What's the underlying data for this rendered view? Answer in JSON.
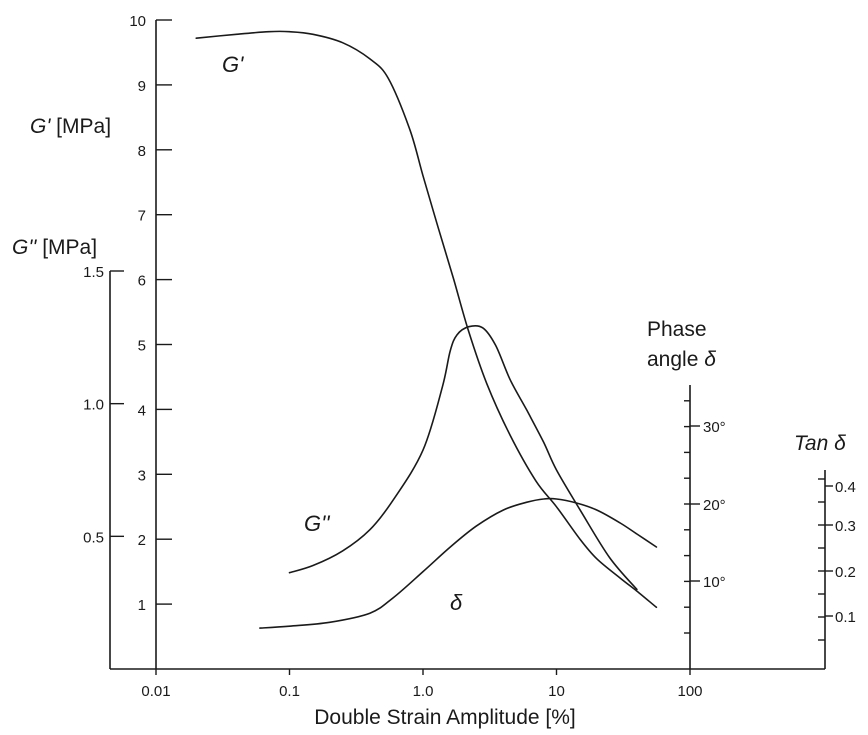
{
  "chart_data": {
    "type": "line",
    "xlabel": "Double Strain Amplitude [%]",
    "xscale": "log",
    "x_ticks": [
      "0.01",
      "0.1",
      "1.0",
      "10",
      "100"
    ],
    "xlim": [
      0.01,
      100
    ],
    "axes": {
      "gprime": {
        "title_symbol": "G'",
        "title_unit": " [MPa]",
        "ylim": [
          0,
          10
        ],
        "ticks": [
          "1",
          "2",
          "3",
          "4",
          "5",
          "6",
          "7",
          "8",
          "9",
          "10"
        ]
      },
      "gdoubleprime": {
        "title_symbol": "G''",
        "title_unit": " [MPa]",
        "ylim": [
          0,
          1.5
        ],
        "ticks": [
          "0.5",
          "1.0",
          "1.5"
        ]
      },
      "phase": {
        "title_line1": "Phase",
        "title_line2": "angle ",
        "title_symbol": "δ",
        "ticks": [
          "10°",
          "20°",
          "30°"
        ]
      },
      "tan": {
        "title_word": "Tan ",
        "title_symbol": "δ",
        "ticks": [
          "0.1",
          "0.2",
          "0.3",
          "0.4"
        ]
      }
    },
    "series": [
      {
        "name": "G'",
        "axis": "gprime",
        "x": [
          0.02,
          0.04,
          0.07,
          0.1,
          0.15,
          0.25,
          0.4,
          0.55,
          0.8,
          1.0,
          1.3,
          1.7,
          2.2,
          3.0,
          4.5,
          7,
          10,
          15,
          20,
          30,
          40,
          56
        ],
        "y": [
          9.72,
          9.78,
          9.82,
          9.82,
          9.78,
          9.65,
          9.4,
          9.1,
          8.3,
          7.6,
          6.8,
          6.0,
          5.2,
          4.4,
          3.6,
          2.9,
          2.5,
          2.0,
          1.7,
          1.4,
          1.2,
          0.95
        ]
      },
      {
        "name": "G''",
        "axis": "gdoubleprime",
        "x": [
          0.1,
          0.15,
          0.25,
          0.4,
          0.6,
          1.0,
          1.4,
          1.6,
          1.8,
          2.2,
          2.8,
          3.5,
          4.5,
          6,
          8,
          10,
          15,
          25,
          40
        ],
        "y": [
          0.363,
          0.39,
          0.445,
          0.525,
          0.638,
          0.825,
          1.065,
          1.2,
          1.26,
          1.29,
          1.286,
          1.22,
          1.09,
          0.975,
          0.855,
          0.75,
          0.6,
          0.42,
          0.3
        ]
      },
      {
        "name": "δ",
        "axis": "gprime",
        "x": [
          0.06,
          0.1,
          0.2,
          0.4,
          0.6,
          1.0,
          1.6,
          2.5,
          4.0,
          6.0,
          8.0,
          10,
          14,
          20,
          30,
          40,
          56
        ],
        "y": [
          0.63,
          0.66,
          0.72,
          0.86,
          1.1,
          1.5,
          1.88,
          2.2,
          2.45,
          2.57,
          2.62,
          2.62,
          2.56,
          2.45,
          2.25,
          2.08,
          1.88
        ]
      }
    ],
    "curve_labels": [
      {
        "name": "G'",
        "text": "G'"
      },
      {
        "name": "G''",
        "text": "G''"
      },
      {
        "name": "δ",
        "text": "δ"
      }
    ],
    "grid": false,
    "legend": "none"
  }
}
